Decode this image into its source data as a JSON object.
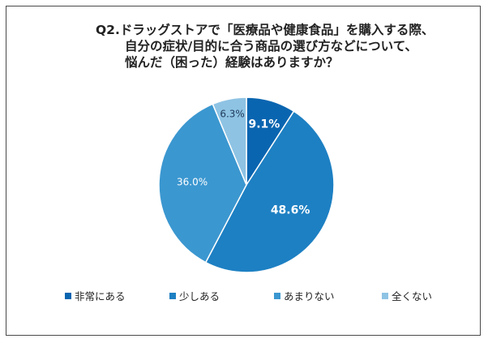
{
  "title_lines": [
    "Q2.ドラッグストアで「医療品や健康食品」を購入する際、",
    "自分の症状/目的に合う商品の選び方などについて、",
    "悩んだ（困った）経験はありますか？"
  ],
  "colors": {
    "slice_1": "#0a65b0",
    "slice_2": "#1d80c3",
    "slice_3": "#3b97d0",
    "slice_4": "#8ec3e4",
    "label_dark": "#ffffff",
    "label_light": "#1f3a5a",
    "frame": "#4a4a4a"
  },
  "chart_data": {
    "type": "pie",
    "title": "Q2.ドラッグストアで「医療品や健康食品」を購入する際、自分の症状/目的に合う商品の選び方などについて、悩んだ（困った）経験はありますか？",
    "categories": [
      "非常にある",
      "少しある",
      "あまりない",
      "全くない"
    ],
    "values": [
      9.1,
      48.6,
      36.0,
      6.3
    ],
    "data_labels": [
      "9.1%",
      "48.6%",
      "36.0%",
      "6.3%"
    ],
    "legend_placement": "bottom"
  }
}
